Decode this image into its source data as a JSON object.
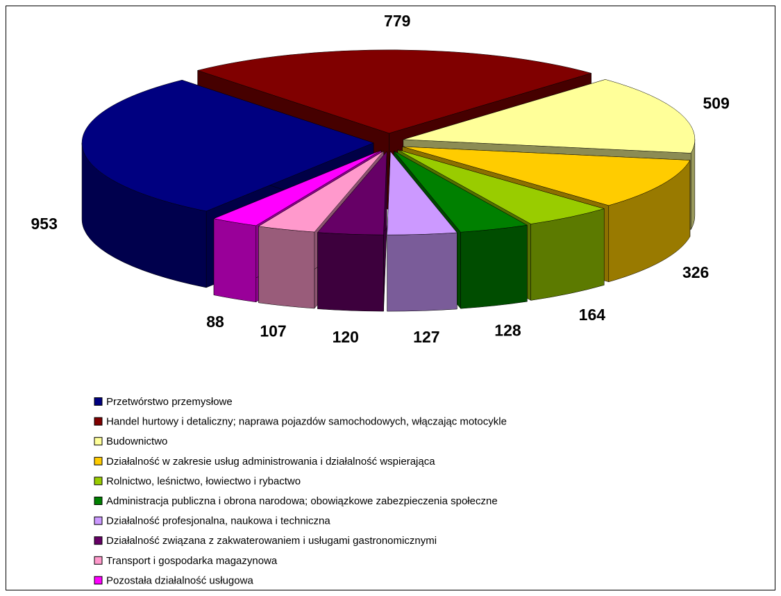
{
  "chart_data": {
    "type": "pie",
    "three_d": true,
    "exploded": true,
    "categories": [
      "Przetwórstwo przemysłowe",
      "Handel hurtowy i detaliczny; naprawa pojazdów samochodowych, włączając motocykle",
      "Budownictwo",
      "Działalność w zakresie usług administrowania i działalność wspierająca",
      "Rolnictwo, leśnictwo, łowiectwo i rybactwo",
      "Administracja publiczna i obrona narodowa; obowiązkowe zabezpieczenia społeczne",
      "Działalność profesjonalna, naukowa i techniczna",
      "Działalność związana z zakwaterowaniem i usługami gastronomicznymi",
      "Transport i gospodarka magazynowa",
      "Pozostała działalność usługowa"
    ],
    "values": [
      953,
      779,
      509,
      326,
      164,
      128,
      127,
      120,
      107,
      88
    ],
    "colors": [
      "#000080",
      "#800000",
      "#ffff99",
      "#ffcc00",
      "#99cc00",
      "#008000",
      "#cc99ff",
      "#660066",
      "#ff99cc",
      "#ff00ff"
    ],
    "legend": "bottom"
  }
}
